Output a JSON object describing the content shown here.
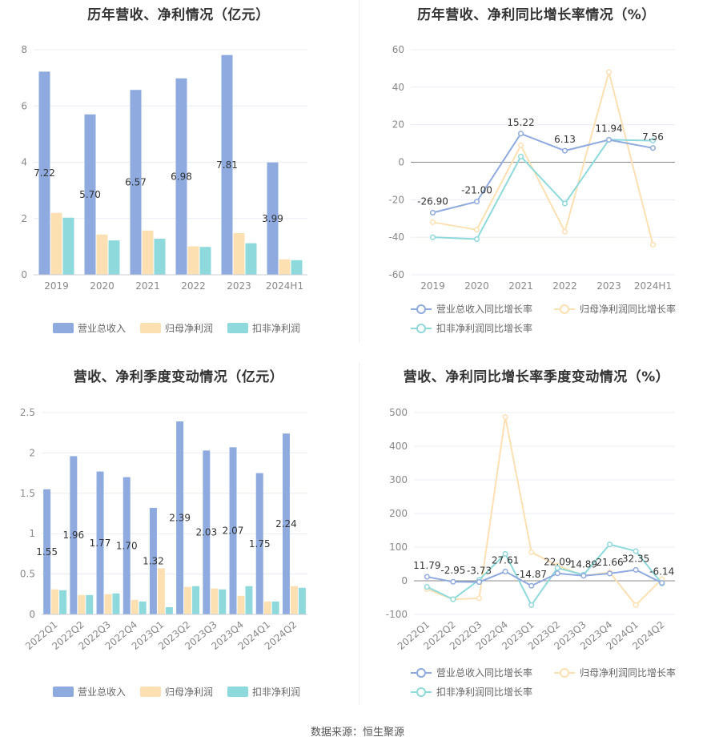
{
  "footer": "数据来源：恒生聚源",
  "chart_data": [
    {
      "type": "bar",
      "title": "历年营收、净利情况（亿元）",
      "categories": [
        "2019",
        "2020",
        "2021",
        "2022",
        "2023",
        "2024H1"
      ],
      "ylim": [
        0,
        8
      ],
      "yticks": [
        0,
        2,
        4,
        6,
        8
      ],
      "grid": true,
      "legend_position": "bottom",
      "series": [
        {
          "name": "营业总收入",
          "color": "#8eaadf",
          "values": [
            7.22,
            5.7,
            6.57,
            6.98,
            7.81,
            3.99
          ],
          "labels": [
            "7.22",
            "5.70",
            "6.57",
            "6.98",
            "7.81",
            "3.99"
          ]
        },
        {
          "name": "归母净利润",
          "color": "#fde0b2",
          "values": [
            2.2,
            1.43,
            1.57,
            1.01,
            1.48,
            0.55
          ]
        },
        {
          "name": "扣非净利润",
          "color": "#8ed9db",
          "values": [
            2.03,
            1.22,
            1.28,
            0.99,
            1.12,
            0.52
          ]
        }
      ]
    },
    {
      "type": "line",
      "title": "历年营收、净利同比增长率情况（%）",
      "categories": [
        "2019",
        "2020",
        "2021",
        "2022",
        "2023",
        "2024H1"
      ],
      "ylim": [
        -60,
        60
      ],
      "yticks": [
        -60,
        -40,
        -20,
        0,
        20,
        40,
        60
      ],
      "grid": true,
      "legend_position": "bottom",
      "series": [
        {
          "name": "营业总收入同比增长率",
          "color": "#8eaadf",
          "values": [
            -26.9,
            -21.0,
            15.22,
            6.13,
            11.94,
            7.56
          ],
          "labels": [
            "-26.90",
            "-21.00",
            "15.22",
            "6.13",
            "11.94",
            "7.56"
          ]
        },
        {
          "name": "归母净利润同比增长率",
          "color": "#fde0b2",
          "values": [
            -32,
            -36,
            9,
            -37,
            48,
            -44
          ]
        },
        {
          "name": "扣非净利润同比增长率",
          "color": "#8ed9db",
          "values": [
            -40,
            -41,
            3,
            -22,
            12,
            11.5
          ]
        }
      ]
    },
    {
      "type": "bar",
      "title": "营收、净利季度变动情况（亿元）",
      "categories": [
        "2022Q1",
        "2022Q2",
        "2022Q3",
        "2022Q4",
        "2023Q1",
        "2023Q2",
        "2023Q3",
        "2023Q4",
        "2024Q1",
        "2024Q2"
      ],
      "ylim": [
        0,
        2.5
      ],
      "yticks": [
        0,
        0.5,
        1,
        1.5,
        2,
        2.5
      ],
      "grid": true,
      "legend_position": "bottom",
      "series": [
        {
          "name": "营业总收入",
          "color": "#8eaadf",
          "values": [
            1.55,
            1.96,
            1.77,
            1.7,
            1.32,
            2.39,
            2.03,
            2.07,
            1.75,
            2.24
          ],
          "labels": [
            "1.55",
            "1.96",
            "1.77",
            "1.70",
            "1.32",
            "2.39",
            "2.03",
            "2.07",
            "1.75",
            "2.24"
          ]
        },
        {
          "name": "归母净利润",
          "color": "#fde0b2",
          "values": [
            0.31,
            0.24,
            0.25,
            0.18,
            0.57,
            0.34,
            0.32,
            0.23,
            0.16,
            0.35
          ]
        },
        {
          "name": "扣非净利润",
          "color": "#8ed9db",
          "values": [
            0.3,
            0.24,
            0.26,
            0.16,
            0.09,
            0.35,
            0.31,
            0.35,
            0.16,
            0.33
          ]
        }
      ]
    },
    {
      "type": "line",
      "title": "营收、净利同比增长率季度变动情况（%）",
      "categories": [
        "2022Q1",
        "2022Q2",
        "2022Q3",
        "2022Q4",
        "2023Q1",
        "2023Q2",
        "2023Q3",
        "2023Q4",
        "2024Q1",
        "2024Q2"
      ],
      "ylim": [
        -100,
        500
      ],
      "yticks": [
        -100,
        0,
        100,
        200,
        300,
        400,
        500
      ],
      "grid": true,
      "legend_position": "bottom",
      "series": [
        {
          "name": "营业总收入同比增长率",
          "color": "#8eaadf",
          "values": [
            11.79,
            -2.95,
            -3.73,
            27.61,
            -14.87,
            22.09,
            14.89,
            21.66,
            32.35,
            -6.14
          ],
          "labels": [
            "11.79",
            "-2.95",
            "-3.73",
            "27.61",
            "-14.87",
            "22.09",
            "14.89",
            "21.66",
            "32.35",
            "-6.14"
          ]
        },
        {
          "name": "归母净利润同比增长率",
          "color": "#fde0b2",
          "values": [
            -25,
            -55,
            -52,
            487,
            85,
            45,
            15,
            25,
            -72,
            5
          ]
        },
        {
          "name": "扣非净利润同比增长率",
          "color": "#8ed9db",
          "values": [
            -18,
            -55,
            3,
            80,
            -72,
            38,
            18,
            108,
            88,
            -8
          ]
        }
      ]
    }
  ]
}
